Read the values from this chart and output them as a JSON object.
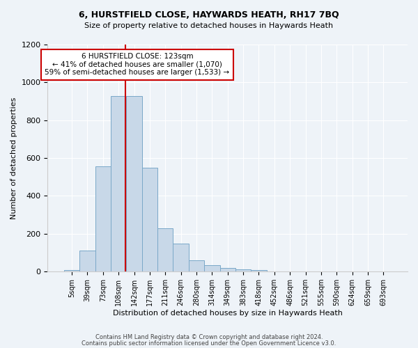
{
  "title": "6, HURSTFIELD CLOSE, HAYWARDS HEATH, RH17 7BQ",
  "subtitle": "Size of property relative to detached houses in Haywards Heath",
  "xlabel": "Distribution of detached houses by size in Haywards Heath",
  "ylabel": "Number of detached properties",
  "bar_values": [
    10,
    113,
    558,
    927,
    927,
    548,
    228,
    147,
    60,
    35,
    20,
    13,
    10,
    0,
    0,
    0,
    0,
    0,
    0,
    0,
    0
  ],
  "bin_labels": [
    "5sqm",
    "39sqm",
    "73sqm",
    "108sqm",
    "142sqm",
    "177sqm",
    "211sqm",
    "246sqm",
    "280sqm",
    "314sqm",
    "349sqm",
    "383sqm",
    "418sqm",
    "452sqm",
    "486sqm",
    "521sqm",
    "555sqm",
    "590sqm",
    "624sqm",
    "659sqm",
    "693sqm"
  ],
  "bar_color": "#c8d8e8",
  "bar_edge_color": "#7aa8c8",
  "vline_color": "#cc0000",
  "annotation_text": "6 HURSTFIELD CLOSE: 123sqm\n← 41% of detached houses are smaller (1,070)\n59% of semi-detached houses are larger (1,533) →",
  "annotation_box_color": "#ffffff",
  "annotation_box_edge": "#cc0000",
  "ylim": [
    0,
    1200
  ],
  "yticks": [
    0,
    200,
    400,
    600,
    800,
    1000,
    1200
  ],
  "bg_color": "#eef3f8",
  "footer_line1": "Contains HM Land Registry data © Crown copyright and database right 2024.",
  "footer_line2": "Contains public sector information licensed under the Open Government Licence v3.0."
}
